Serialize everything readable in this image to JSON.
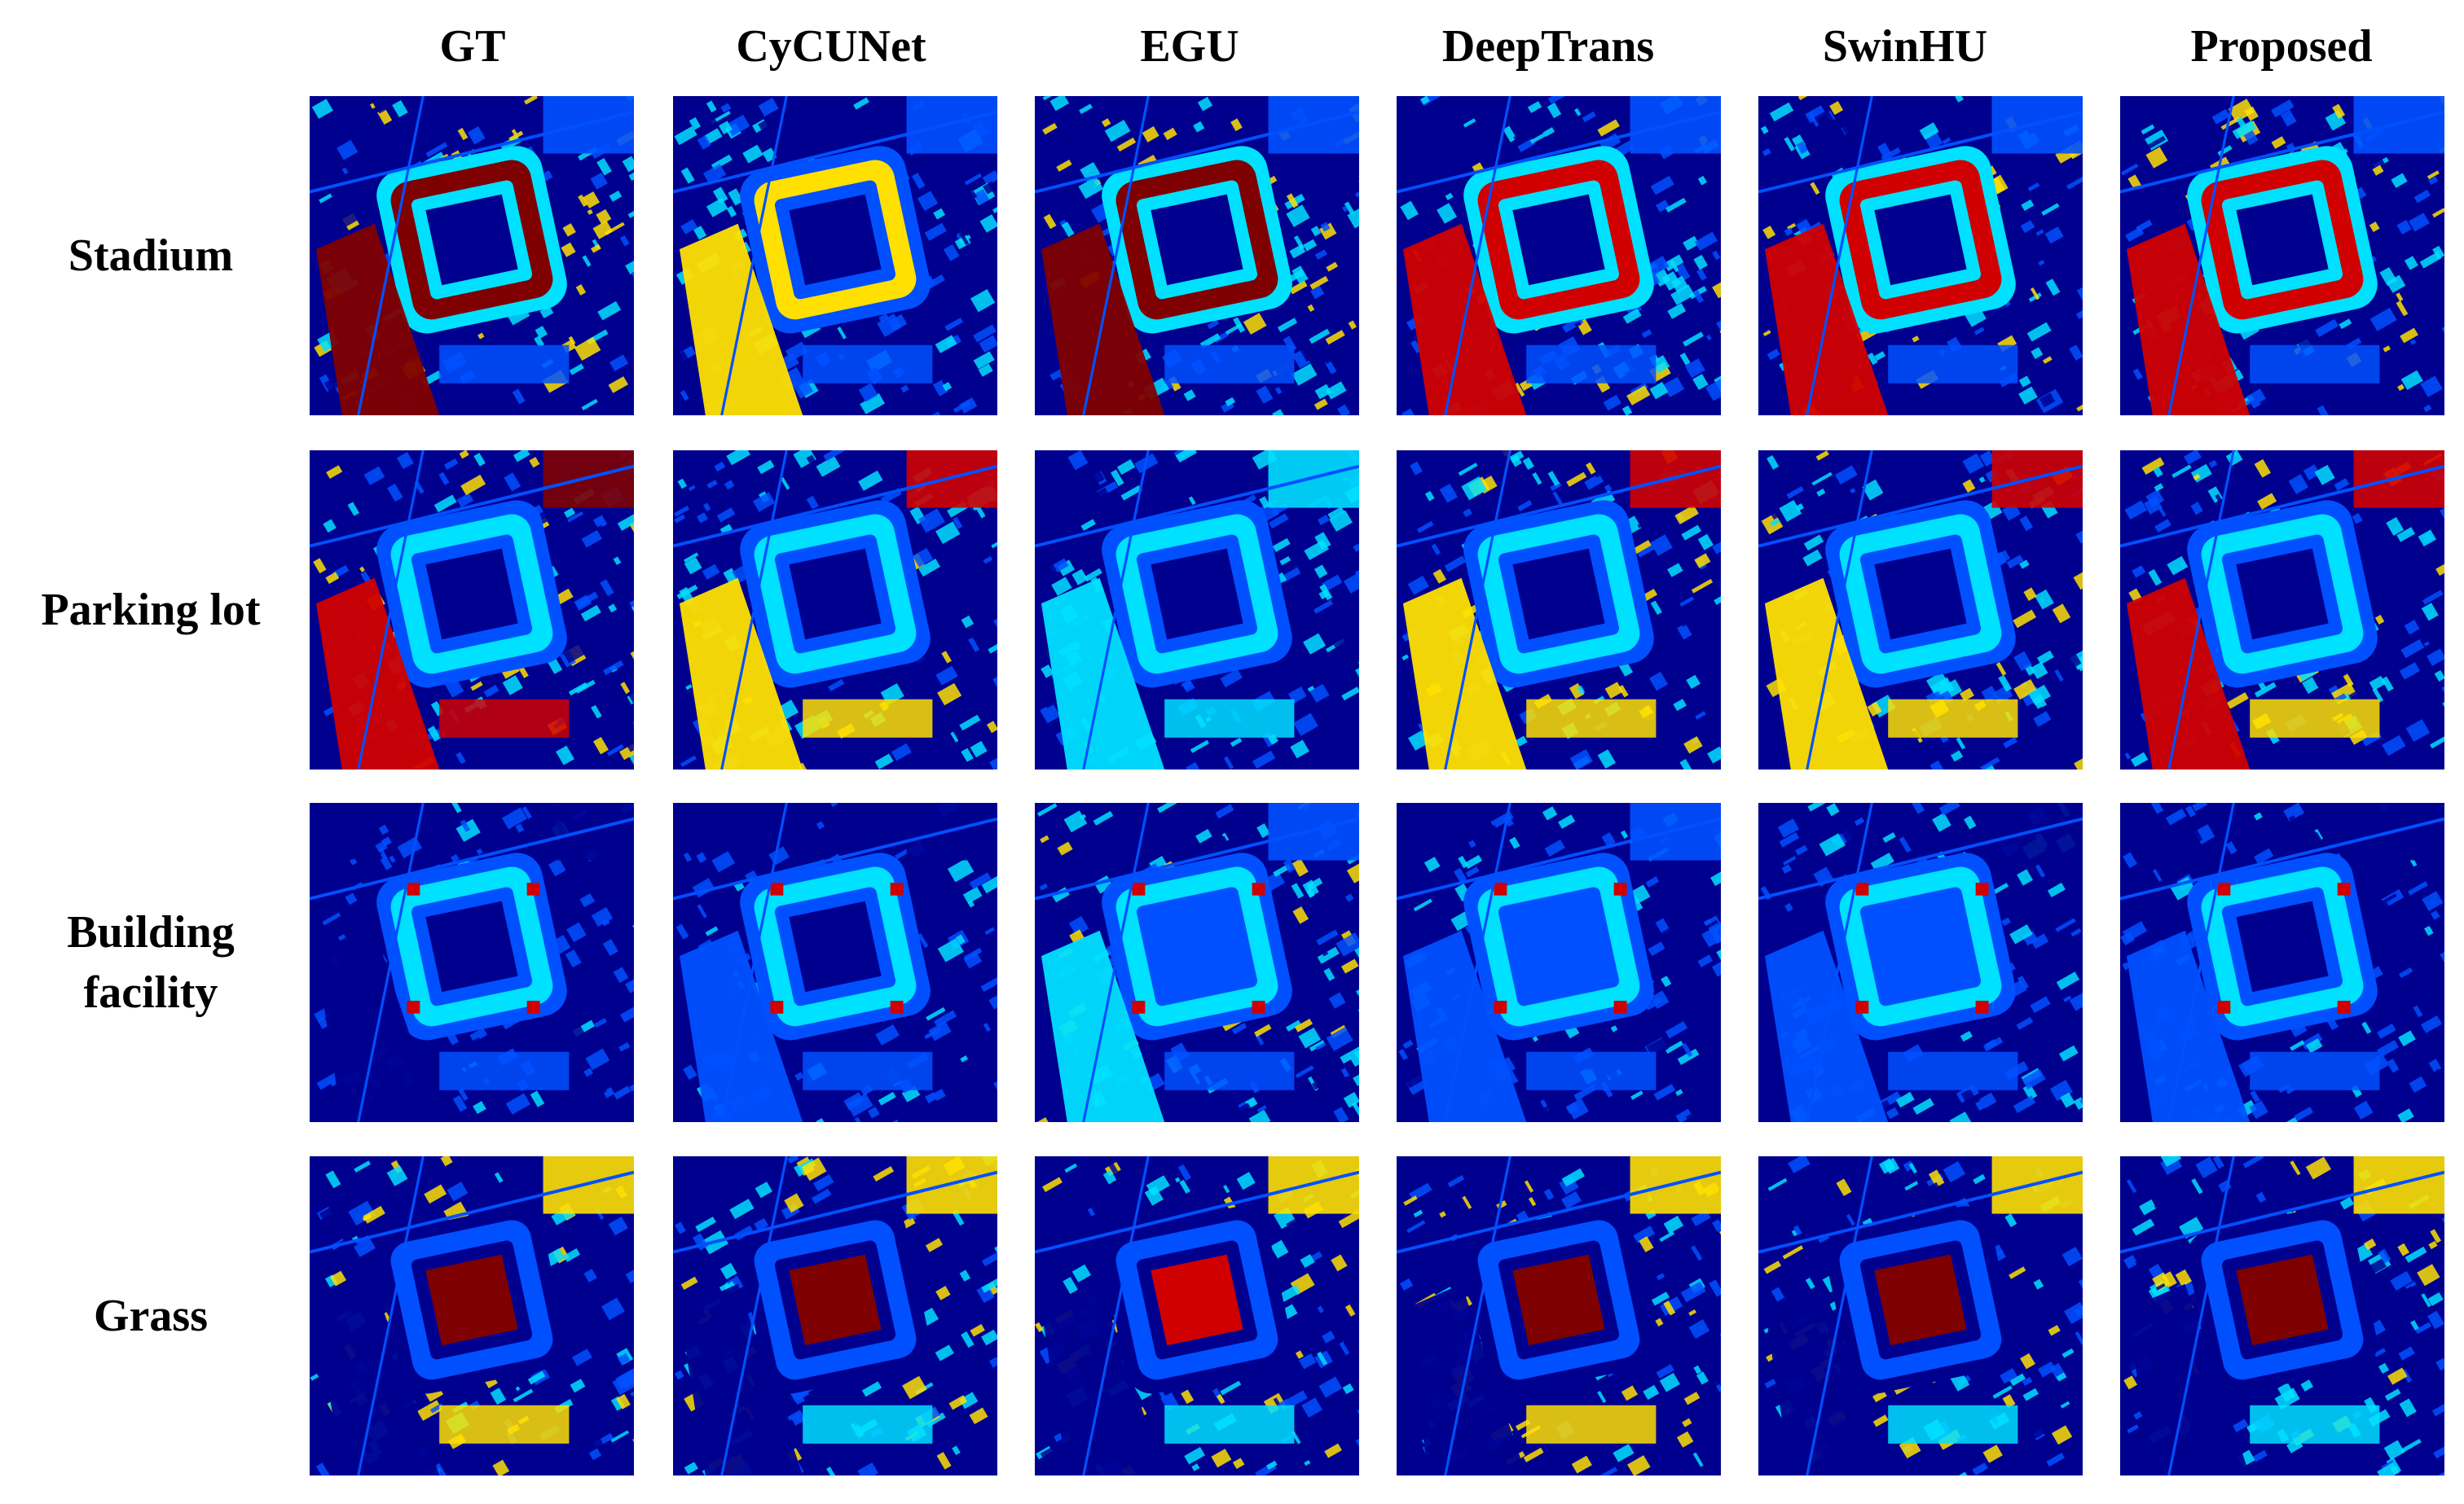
{
  "figure": {
    "columns": [
      "GT",
      "CyCUNet",
      "EGU",
      "DeepTrans",
      "SwinHU",
      "Proposed"
    ],
    "rows": [
      {
        "label_lines": [
          "Stadium"
        ],
        "target": "stadium"
      },
      {
        "label_lines": [
          "Parking lot"
        ],
        "target": "parking"
      },
      {
        "label_lines": [
          "Building",
          "facility"
        ],
        "target": "building"
      },
      {
        "label_lines": [
          "Grass"
        ],
        "target": "grass"
      }
    ],
    "panel_content": "abundance map (jet colormap)",
    "colormap": {
      "low": "#00008f",
      "mid_low": "#0050ff",
      "mid": "#00e0ff",
      "mid_high": "#ffe000",
      "high": "#d00000",
      "max": "#7f0000"
    }
  }
}
